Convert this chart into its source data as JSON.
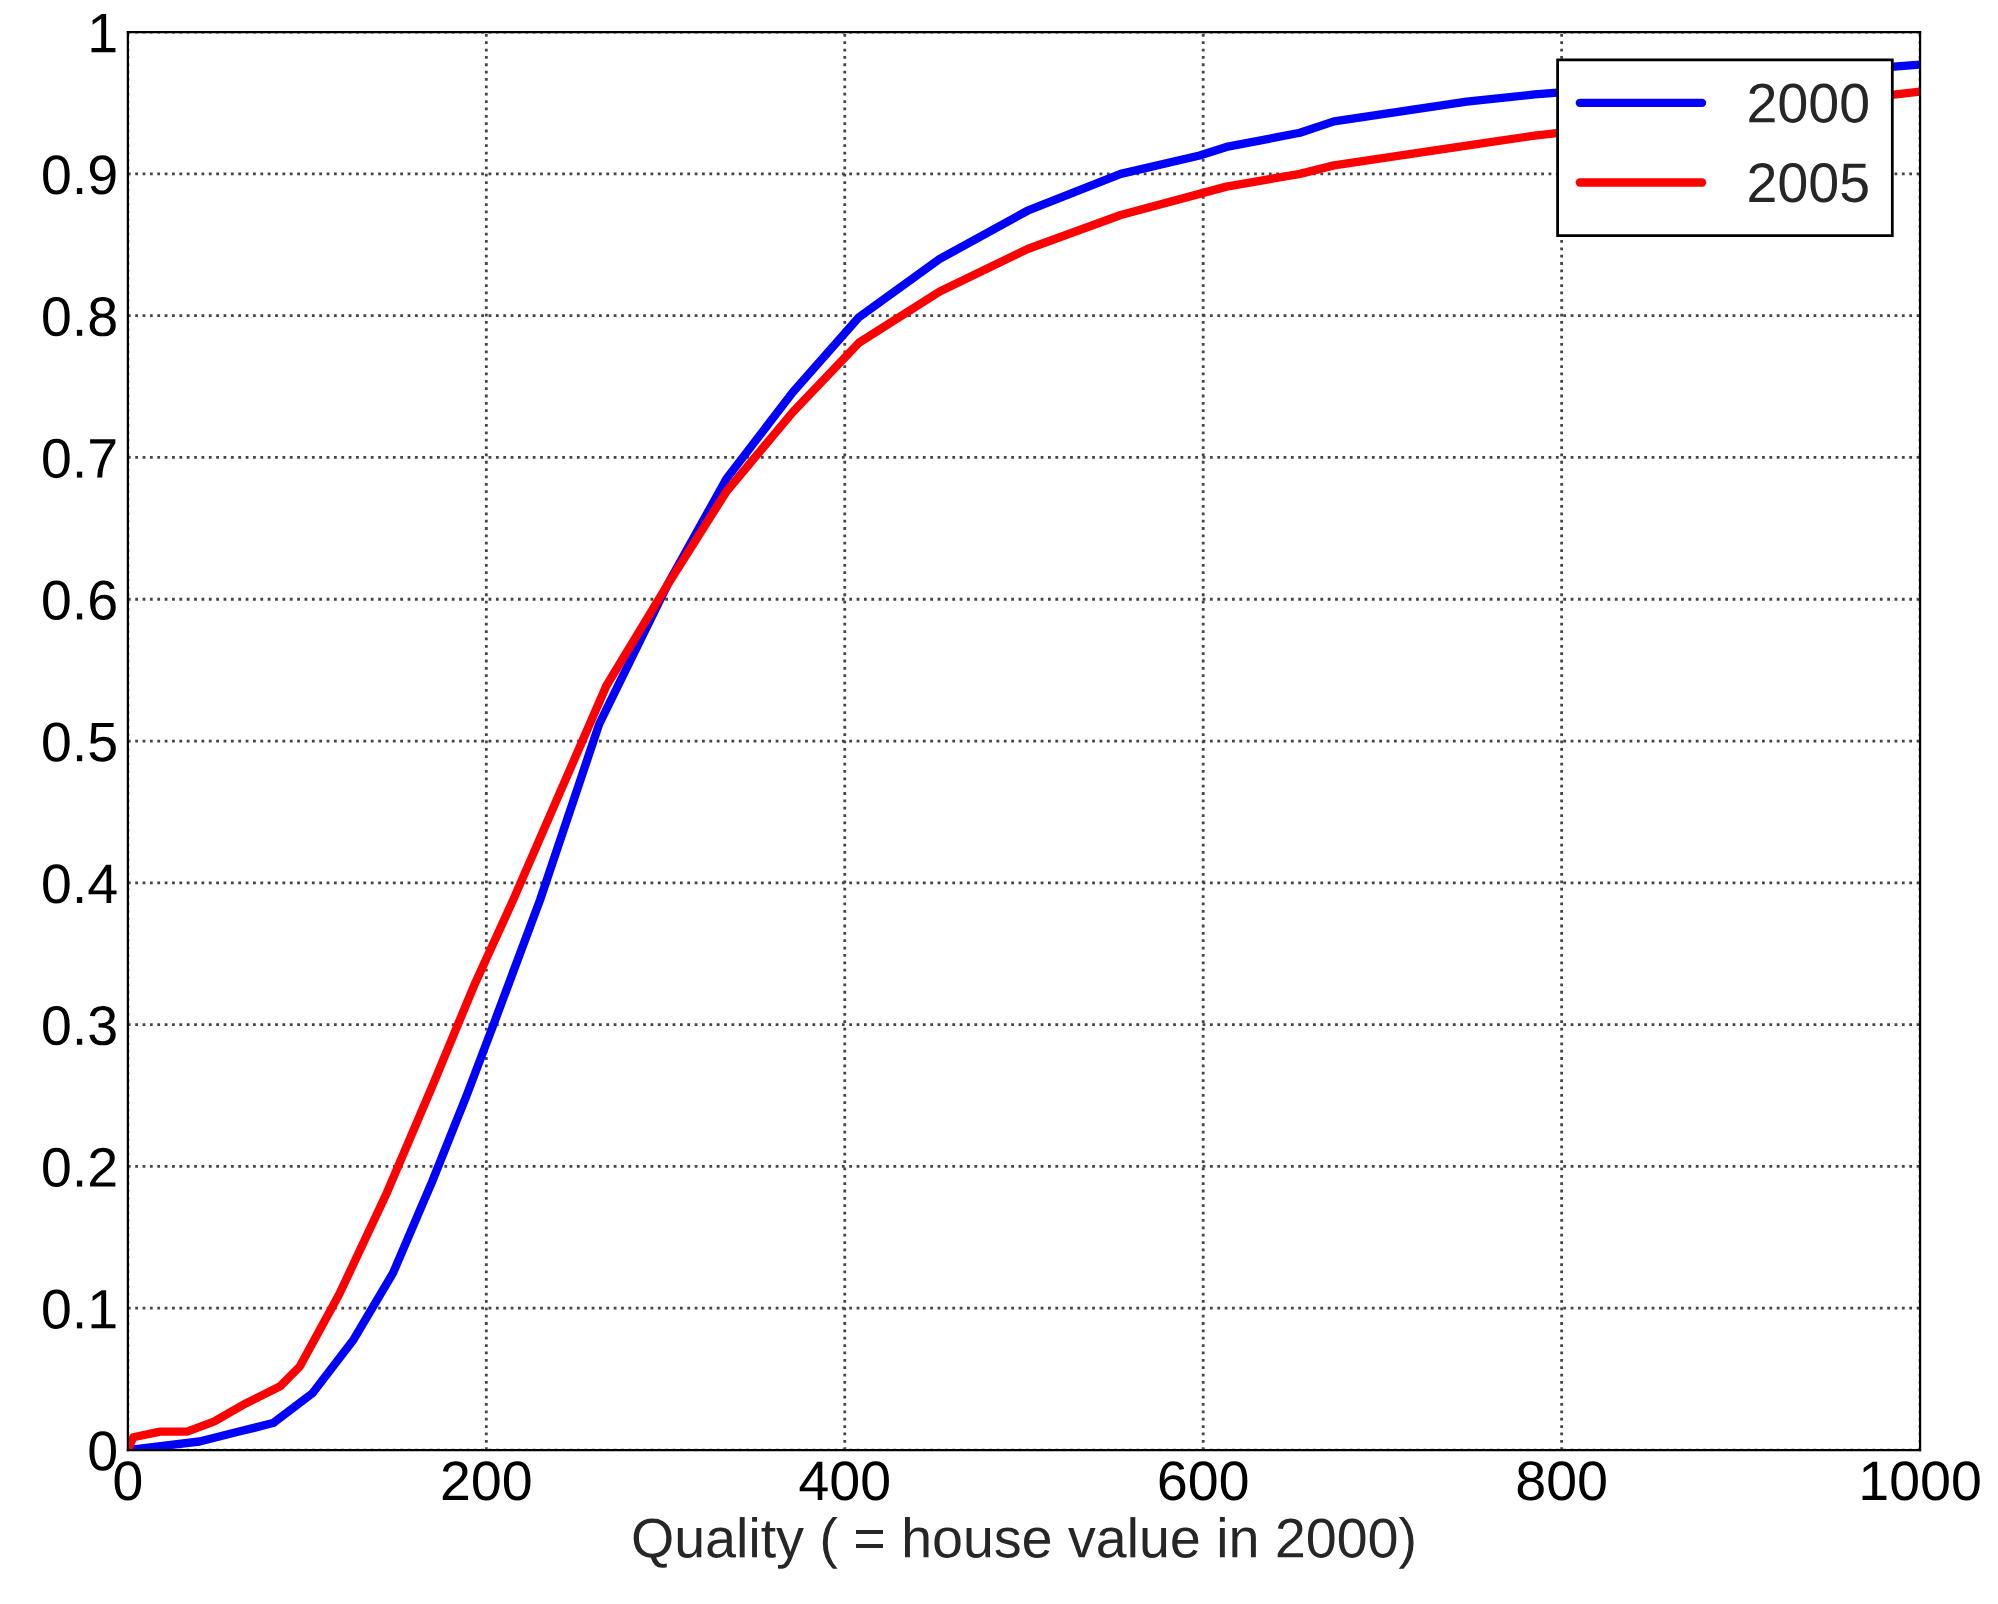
{
  "chart_data": {
    "type": "line",
    "xlabel": "Quality ( = house value in 2000)",
    "xlim": [
      0,
      1000
    ],
    "xticks": [
      0,
      200,
      400,
      600,
      800,
      1000
    ],
    "ylim": [
      0,
      1
    ],
    "yticks": [
      0,
      0.1,
      0.2,
      0.3,
      0.4,
      0.5,
      0.6,
      0.7,
      0.8,
      0.9,
      1
    ],
    "grid": true,
    "legend": "top right",
    "line_style": "solid",
    "marker": "none",
    "series": [
      {
        "name": "2000",
        "color": "#0000ff",
        "x": [
          0,
          40,
          62,
          81,
          103,
          126,
          148,
          170,
          189,
          204,
          230,
          263,
          301,
          334,
          371,
          408,
          453,
          502,
          554,
          598,
          613,
          654,
          673,
          747,
          785,
          989,
          1000
        ],
        "values": [
          0,
          0.006,
          0.013,
          0.019,
          0.04,
          0.078,
          0.125,
          0.19,
          0.25,
          0.3,
          0.388,
          0.512,
          0.61,
          0.685,
          0.746,
          0.799,
          0.84,
          0.874,
          0.9,
          0.913,
          0.919,
          0.929,
          0.937,
          0.951,
          0.956,
          0.976,
          0.977
        ]
      },
      {
        "name": "2005",
        "color": "#ff0000",
        "x": [
          0,
          3,
          18,
          33,
          48,
          66,
          85,
          96,
          118,
          144,
          170,
          193,
          215,
          267,
          301,
          334,
          371,
          408,
          453,
          502,
          554,
          613,
          654,
          673,
          747,
          785,
          1000
        ],
        "values": [
          0,
          0.009,
          0.013,
          0.013,
          0.02,
          0.033,
          0.045,
          0.059,
          0.11,
          0.18,
          0.257,
          0.327,
          0.388,
          0.539,
          0.61,
          0.676,
          0.732,
          0.781,
          0.817,
          0.847,
          0.871,
          0.891,
          0.9,
          0.906,
          0.92,
          0.927,
          0.958
        ]
      }
    ]
  }
}
